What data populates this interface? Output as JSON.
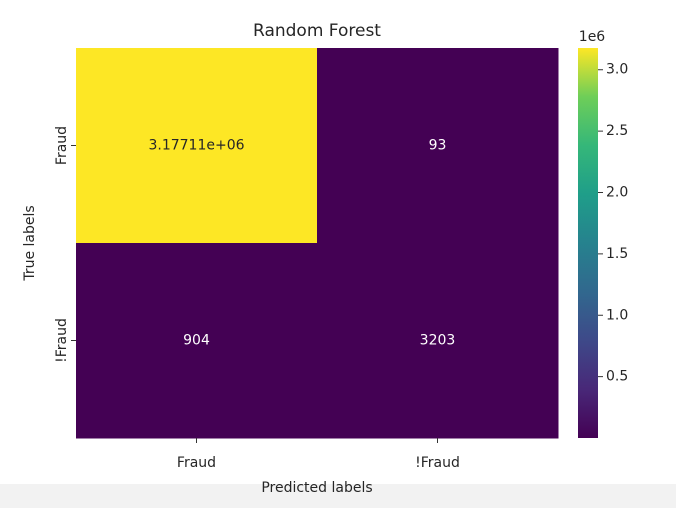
{
  "chart_data": {
    "type": "heatmap",
    "title": "Random Forest",
    "x_label": "Predicted labels",
    "y_label": "True labels",
    "x_categories": [
      "Fraud",
      "!Fraud"
    ],
    "y_categories": [
      "Fraud",
      "!Fraud"
    ],
    "values": [
      [
        3177110,
        93
      ],
      [
        904,
        3203
      ]
    ],
    "value_labels": [
      [
        "3.17711e+06",
        "93"
      ],
      [
        "904",
        "3203"
      ]
    ],
    "colormap": "viridis",
    "clim": [
      93,
      3177110
    ],
    "colorbar_offset": "1e6",
    "colorbar_ticks": [
      {
        "value": 500000,
        "label": "0.5"
      },
      {
        "value": 1000000,
        "label": "1.0"
      },
      {
        "value": 1500000,
        "label": "1.5"
      },
      {
        "value": 2000000,
        "label": "2.0"
      },
      {
        "value": 2500000,
        "label": "2.5"
      },
      {
        "value": 3000000,
        "label": "3.0"
      }
    ]
  }
}
